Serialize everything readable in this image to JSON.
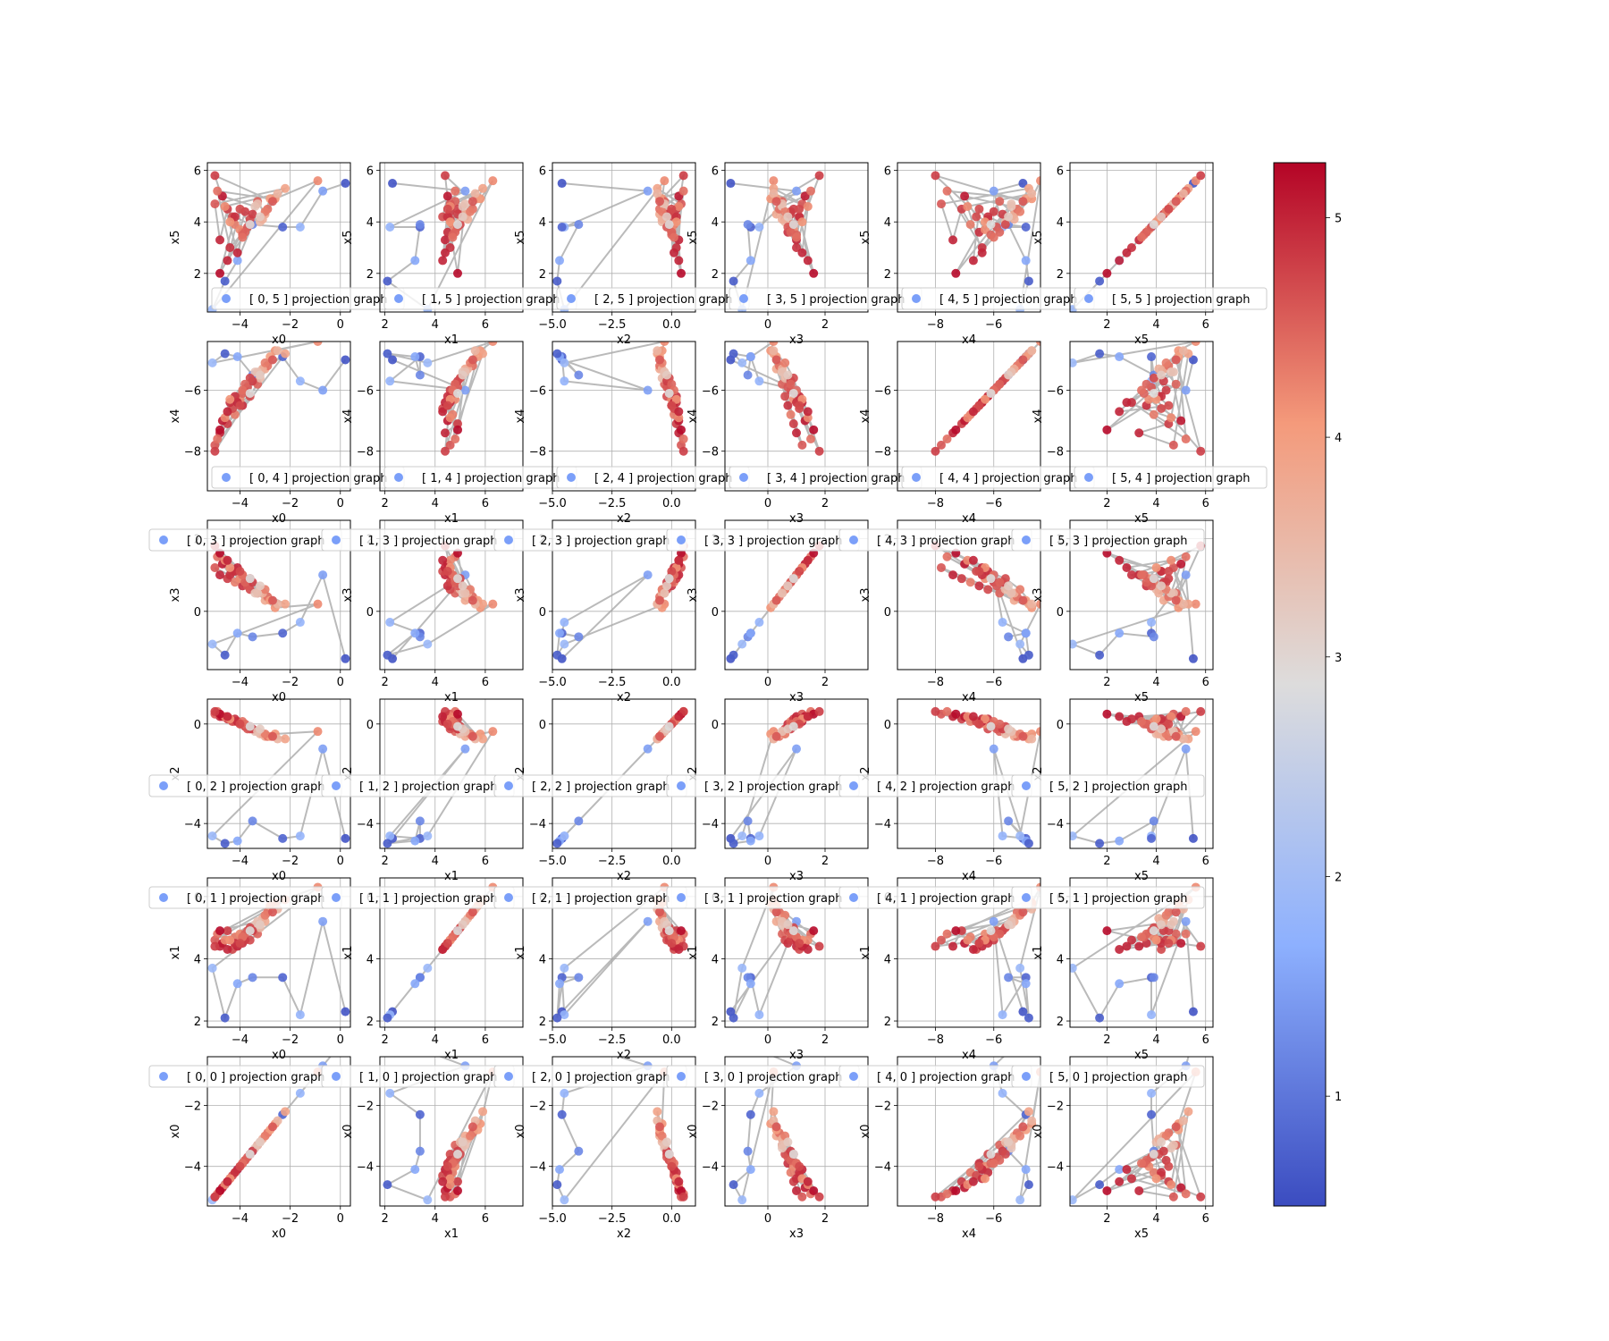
{
  "chart_data": {
    "type": "scatter",
    "description": "6x6 grid of pairwise projection scatter plots of points x0..x5, colored by a colorbar value, connected by gray path lines",
    "variables": [
      "x0",
      "x1",
      "x2",
      "x3",
      "x4",
      "x5"
    ],
    "legend_template": "[ {i}, {j} ] projection graph",
    "axes": {
      "x0": {
        "lim": [
          -5.3,
          0.4
        ],
        "ticks": [
          -4,
          -2,
          0
        ],
        "tick_labels": [
          "−4",
          "−2",
          "0"
        ]
      },
      "x1": {
        "lim": [
          1.8,
          7.5
        ],
        "ticks": [
          2,
          4,
          6
        ],
        "tick_labels": [
          "2",
          "4",
          "6"
        ]
      },
      "x2": {
        "lim": [
          -5.0,
          1.0
        ],
        "ticks": [
          -5.0,
          -2.5,
          0.0
        ],
        "tick_labels": [
          "−5.0",
          "−2.5",
          "0.0"
        ]
      },
      "x3": {
        "lim": [
          -1.5,
          3.5
        ],
        "ticks": [
          0,
          2
        ],
        "tick_labels": [
          "0",
          "2"
        ]
      },
      "x4": {
        "lim": [
          -9.3,
          -4.4
        ],
        "ticks": [
          -8,
          -6
        ],
        "tick_labels": [
          "−8",
          "−6"
        ]
      },
      "x5": {
        "lim": [
          0.5,
          6.3
        ],
        "ticks": [
          2,
          4,
          6
        ],
        "tick_labels": [
          "2",
          "4",
          "6"
        ]
      }
    },
    "row_y_ticks": {
      "x5": {
        "ticks": [
          2,
          4,
          6
        ],
        "tick_labels": [
          "2",
          "4",
          "6"
        ],
        "lim": [
          0.5,
          6.3
        ]
      },
      "x4": {
        "ticks": [
          -8,
          -6
        ],
        "tick_labels": [
          "−8",
          "−6"
        ],
        "lim": [
          -9.3,
          -4.4
        ]
      },
      "x3": {
        "ticks": [
          0,
          2
        ],
        "tick_labels": [
          "0",
          "2"
        ],
        "lim": [
          -1.6,
          2.5
        ]
      },
      "x2": {
        "ticks": [
          -4,
          0
        ],
        "tick_labels": [
          "−4",
          "0"
        ],
        "lim": [
          -5.0,
          1.0
        ]
      },
      "x1": {
        "ticks": [
          2,
          4,
          6
        ],
        "tick_labels": [
          "2",
          "4",
          "6"
        ],
        "lim": [
          1.8,
          6.6
        ]
      },
      "x0": {
        "ticks": [
          -4,
          -2
        ],
        "tick_labels": [
          "−4",
          "−2"
        ],
        "lim": [
          -5.3,
          -0.4
        ]
      }
    },
    "colorbar": {
      "range": [
        0.5,
        5.25
      ],
      "ticks": [
        1,
        2,
        3,
        4,
        5
      ],
      "tick_labels": [
        "1",
        "2",
        "3",
        "4",
        "5"
      ],
      "colormap": "coolwarm"
    },
    "points": {
      "x0": [
        0.2,
        -0.7,
        -1.6,
        -2.3,
        -3.5,
        -4.1,
        -4.6,
        -5.1,
        -0.9,
        -2.6,
        -3.0,
        -3.3,
        -3.6,
        -3.9,
        -4.2,
        -4.5,
        -4.8,
        -5.0,
        -2.2,
        -2.9,
        -3.2,
        -3.8,
        -4.0,
        -4.3,
        -4.7,
        -3.4,
        -3.7,
        -4.4,
        -4.9,
        -2.8,
        -3.1,
        -3.5,
        -3.9,
        -4.1,
        -4.6,
        -2.5,
        -3.0,
        -3.6,
        -4.2,
        -4.8,
        -3.3,
        -3.8,
        -4.4,
        -5.0,
        -2.7,
        -3.2,
        -3.9,
        -4.5,
        -4.0,
        -3.6
      ],
      "x1": [
        2.3,
        5.2,
        2.2,
        3.4,
        3.4,
        3.2,
        2.1,
        3.7,
        6.3,
        5.8,
        5.2,
        4.8,
        4.6,
        4.5,
        4.7,
        4.9,
        4.4,
        4.6,
        5.9,
        5.5,
        5.0,
        4.6,
        4.8,
        4.3,
        4.5,
        5.1,
        4.9,
        4.6,
        4.8,
        5.7,
        5.3,
        4.9,
        4.7,
        4.4,
        4.6,
        5.6,
        5.4,
        5.0,
        4.5,
        4.9,
        5.2,
        4.8,
        4.6,
        4.4,
        5.5,
        5.1,
        4.7,
        4.3,
        4.5,
        4.9
      ],
      "x2": [
        -4.6,
        -1.0,
        -4.5,
        -4.6,
        -3.9,
        -4.7,
        -4.8,
        -4.5,
        -0.3,
        -0.4,
        -0.5,
        -0.3,
        -0.2,
        0.0,
        0.1,
        0.2,
        0.3,
        0.4,
        -0.6,
        -0.5,
        -0.4,
        -0.1,
        0.0,
        0.1,
        0.3,
        -0.3,
        -0.2,
        0.2,
        0.5,
        -0.5,
        -0.4,
        -0.2,
        0.0,
        0.1,
        0.3,
        -0.6,
        -0.4,
        -0.1,
        0.2,
        0.4,
        -0.3,
        0.0,
        0.2,
        0.5,
        -0.5,
        -0.2,
        0.1,
        0.3,
        0.0,
        -0.1
      ],
      "x3": [
        -1.3,
        1.0,
        -0.3,
        -0.6,
        -0.7,
        -0.6,
        -1.2,
        -0.9,
        0.2,
        0.1,
        0.3,
        0.5,
        0.6,
        0.7,
        0.8,
        0.9,
        1.0,
        1.2,
        0.2,
        0.4,
        0.6,
        0.8,
        0.9,
        1.1,
        1.3,
        0.5,
        0.7,
        1.0,
        1.5,
        0.3,
        0.5,
        0.8,
        1.0,
        1.2,
        1.4,
        0.2,
        0.6,
        0.9,
        1.1,
        1.6,
        0.5,
        0.8,
        1.2,
        1.8,
        0.3,
        0.7,
        1.0,
        1.4,
        1.1,
        0.9
      ],
      "x4": [
        -5.0,
        -6.0,
        -5.7,
        -4.9,
        -5.5,
        -4.9,
        -4.8,
        -5.1,
        -4.4,
        -4.7,
        -5.3,
        -5.8,
        -6.2,
        -6.5,
        -6.8,
        -7.1,
        -7.4,
        -7.8,
        -4.8,
        -5.2,
        -5.6,
        -6.0,
        -6.3,
        -6.6,
        -7.0,
        -5.4,
        -5.9,
        -6.4,
        -7.6,
        -4.9,
        -5.3,
        -5.7,
        -6.1,
        -6.4,
        -6.9,
        -4.7,
        -5.1,
        -5.6,
        -6.2,
        -7.3,
        -5.4,
        -5.8,
        -6.3,
        -8.0,
        -5.0,
        -5.5,
        -6.0,
        -6.7,
        -6.5,
        -6.1
      ],
      "x5": [
        5.5,
        5.2,
        3.8,
        3.8,
        3.9,
        2.5,
        1.7,
        0.6,
        5.6,
        4.9,
        4.3,
        4.8,
        4.1,
        3.6,
        3.9,
        4.5,
        3.3,
        4.7,
        5.3,
        4.5,
        4.0,
        4.4,
        3.7,
        4.2,
        5.0,
        4.6,
        3.8,
        3.0,
        5.2,
        4.9,
        4.1,
        4.3,
        3.5,
        2.8,
        4.6,
        5.1,
        4.4,
        3.9,
        4.2,
        2.0,
        4.7,
        3.6,
        4.0,
        5.8,
        4.8,
        4.2,
        3.4,
        2.5,
        4.5,
        3.9
      ],
      "value": [
        0.6,
        1.5,
        1.8,
        0.8,
        1.2,
        1.6,
        0.7,
        1.9,
        4.2,
        4.1,
        3.8,
        4.5,
        4.7,
        4.9,
        4.3,
        4.8,
        5.0,
        4.6,
        3.9,
        4.4,
        3.5,
        4.8,
        4.2,
        4.7,
        5.1,
        3.3,
        4.6,
        4.9,
        4.4,
        4.0,
        3.7,
        4.8,
        4.5,
        5.0,
        4.2,
        3.6,
        4.3,
        4.7,
        4.9,
        5.2,
        3.4,
        4.5,
        4.1,
        4.8,
        4.6,
        3.2,
        4.4,
        5.0,
        4.7,
        2.9
      ]
    }
  }
}
